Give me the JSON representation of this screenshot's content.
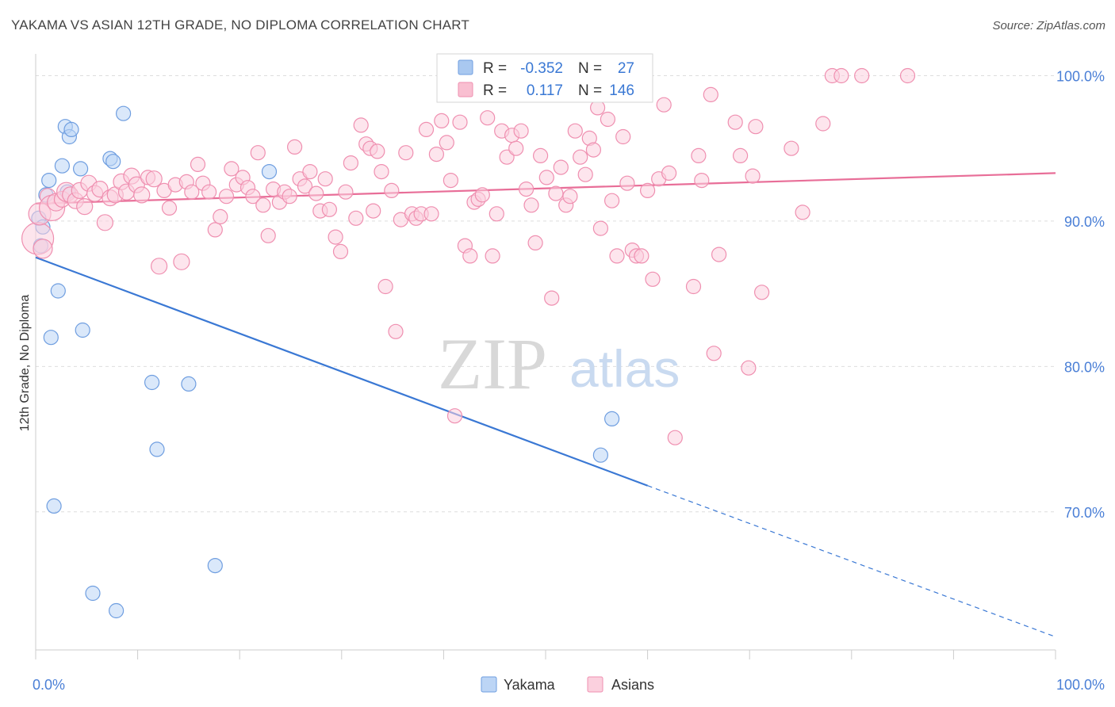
{
  "title": "YAKAMA VS ASIAN 12TH GRADE, NO DIPLOMA CORRELATION CHART",
  "source": "Source: ZipAtlas.com",
  "watermark": {
    "zip": "ZIP",
    "atlas": "atlas"
  },
  "stats": [
    {
      "r_label": "R =",
      "r_value": "-0.352",
      "n_label": "N =",
      "n_value": "27",
      "color": "#a9c8f0",
      "stroke": "#6f9ee0"
    },
    {
      "r_label": "R =",
      "r_value": "0.117",
      "n_label": "N =",
      "n_value": "146",
      "color": "#f9bfd1",
      "stroke": "#ef8fb0"
    }
  ],
  "legend": [
    {
      "label": "Yakama",
      "color": "#bcd5f5",
      "stroke": "#6f9ee0"
    },
    {
      "label": "Asians",
      "color": "#fbd0de",
      "stroke": "#ef8fb0"
    }
  ],
  "chart_data": {
    "type": "scatter",
    "xlabel": "",
    "ylabel": "12th Grade, No Diploma",
    "xlim": [
      0,
      100
    ],
    "ylim": [
      60.5,
      101.5
    ],
    "x_tick_labels": [
      {
        "v": 0,
        "label": "0.0%"
      },
      {
        "v": 100,
        "label": "100.0%"
      }
    ],
    "x_minor_ticks": [
      0,
      10,
      20,
      30,
      40,
      50,
      60,
      70,
      80,
      90,
      100
    ],
    "y_ticks": [
      {
        "v": 100,
        "label": "100.0%"
      },
      {
        "v": 90,
        "label": "90.0%"
      },
      {
        "v": 80,
        "label": "80.0%"
      },
      {
        "v": 70,
        "label": "70.0%"
      }
    ],
    "grid": true,
    "series": [
      {
        "name": "Yakama",
        "color": "#bcd5f5",
        "stroke": "#6f9ee0",
        "trend": {
          "x0": 0,
          "y0": 87.5,
          "x1": 60,
          "y1": 71.8,
          "dash_to_x": 100,
          "dash_to_y": 61.4,
          "color": "#3a78d4"
        },
        "points": [
          [
            0.3,
            90.2,
            9
          ],
          [
            0.5,
            88.3,
            9
          ],
          [
            0.7,
            89.6,
            9
          ],
          [
            1.0,
            91.8,
            9
          ],
          [
            1.3,
            92.8,
            9
          ],
          [
            1.5,
            82.0,
            9
          ],
          [
            1.8,
            70.4,
            9
          ],
          [
            2.2,
            85.2,
            9
          ],
          [
            2.6,
            93.8,
            9
          ],
          [
            2.9,
            96.5,
            9
          ],
          [
            3.1,
            92.0,
            9
          ],
          [
            3.3,
            95.8,
            9
          ],
          [
            3.5,
            96.3,
            9
          ],
          [
            4.4,
            93.6,
            9
          ],
          [
            4.6,
            82.5,
            9
          ],
          [
            5.6,
            64.4,
            9
          ],
          [
            7.3,
            94.3,
            9
          ],
          [
            7.6,
            94.1,
            9
          ],
          [
            7.9,
            63.2,
            9
          ],
          [
            8.6,
            97.4,
            9
          ],
          [
            11.4,
            78.9,
            9
          ],
          [
            11.9,
            74.3,
            9
          ],
          [
            15.0,
            78.8,
            9
          ],
          [
            17.6,
            66.3,
            9
          ],
          [
            22.9,
            93.4,
            9
          ],
          [
            55.4,
            73.9,
            9
          ],
          [
            56.5,
            76.4,
            9
          ]
        ]
      },
      {
        "name": "Asians",
        "color": "#fbd0de",
        "stroke": "#ef8fb0",
        "trend": {
          "x0": 0,
          "y0": 91.2,
          "x1": 100,
          "y1": 93.3,
          "color": "#e86e98"
        },
        "points": [
          [
            0.2,
            88.8,
            20
          ],
          [
            0.4,
            90.5,
            14
          ],
          [
            0.7,
            88.1,
            12
          ],
          [
            1.2,
            91.7,
            10
          ],
          [
            1.6,
            90.9,
            16
          ],
          [
            2.0,
            91.3,
            11
          ],
          [
            2.6,
            91.5,
            10
          ],
          [
            3.0,
            92.0,
            12
          ],
          [
            3.4,
            91.8,
            10
          ],
          [
            3.9,
            91.4,
            10
          ],
          [
            4.3,
            92.1,
            10
          ],
          [
            4.8,
            91.0,
            10
          ],
          [
            5.2,
            92.6,
            10
          ],
          [
            5.8,
            91.9,
            10
          ],
          [
            6.3,
            92.2,
            10
          ],
          [
            6.8,
            89.9,
            10
          ],
          [
            7.3,
            91.6,
            10
          ],
          [
            7.8,
            91.8,
            10
          ],
          [
            8.4,
            92.7,
            10
          ],
          [
            8.9,
            92.0,
            10
          ],
          [
            9.4,
            93.1,
            10
          ],
          [
            9.9,
            92.5,
            10
          ],
          [
            10.4,
            91.8,
            10
          ],
          [
            11.0,
            93.0,
            9
          ],
          [
            11.6,
            92.9,
            10
          ],
          [
            12.1,
            86.9,
            10
          ],
          [
            12.6,
            92.1,
            9
          ],
          [
            13.1,
            90.9,
            9
          ],
          [
            13.7,
            92.5,
            9
          ],
          [
            14.3,
            87.2,
            10
          ],
          [
            14.8,
            92.7,
            9
          ],
          [
            15.3,
            92.0,
            9
          ],
          [
            15.9,
            93.9,
            9
          ],
          [
            16.4,
            92.6,
            9
          ],
          [
            17.0,
            92.0,
            9
          ],
          [
            17.6,
            89.4,
            9
          ],
          [
            18.1,
            90.3,
            9
          ],
          [
            18.7,
            91.7,
            9
          ],
          [
            19.2,
            93.6,
            9
          ],
          [
            19.7,
            92.5,
            9
          ],
          [
            20.3,
            93.0,
            9
          ],
          [
            20.8,
            92.3,
            9
          ],
          [
            21.3,
            91.7,
            9
          ],
          [
            21.8,
            94.7,
            9
          ],
          [
            22.3,
            91.1,
            9
          ],
          [
            22.8,
            89.0,
            9
          ],
          [
            23.3,
            92.2,
            9
          ],
          [
            23.9,
            91.3,
            9
          ],
          [
            24.4,
            92.0,
            9
          ],
          [
            24.9,
            91.7,
            9
          ],
          [
            25.4,
            95.1,
            9
          ],
          [
            25.9,
            92.9,
            9
          ],
          [
            26.4,
            92.4,
            9
          ],
          [
            26.9,
            93.4,
            9
          ],
          [
            27.5,
            91.9,
            9
          ],
          [
            27.9,
            90.7,
            9
          ],
          [
            28.4,
            92.9,
            9
          ],
          [
            28.8,
            90.8,
            9
          ],
          [
            29.4,
            88.9,
            9
          ],
          [
            29.9,
            87.9,
            9
          ],
          [
            30.4,
            92.0,
            9
          ],
          [
            30.9,
            94.0,
            9
          ],
          [
            31.4,
            90.2,
            9
          ],
          [
            31.9,
            96.6,
            9
          ],
          [
            32.4,
            95.3,
            9
          ],
          [
            32.8,
            95.0,
            9
          ],
          [
            33.1,
            90.7,
            9
          ],
          [
            33.5,
            94.8,
            9
          ],
          [
            33.9,
            93.4,
            9
          ],
          [
            34.3,
            85.5,
            9
          ],
          [
            34.9,
            92.1,
            9
          ],
          [
            35.3,
            82.4,
            9
          ],
          [
            35.8,
            90.1,
            9
          ],
          [
            36.3,
            94.7,
            9
          ],
          [
            36.9,
            90.5,
            9
          ],
          [
            37.3,
            90.2,
            9
          ],
          [
            37.8,
            90.5,
            9
          ],
          [
            38.3,
            96.3,
            9
          ],
          [
            38.8,
            90.5,
            9
          ],
          [
            39.3,
            94.6,
            9
          ],
          [
            39.8,
            96.9,
            9
          ],
          [
            40.3,
            95.4,
            9
          ],
          [
            40.7,
            92.8,
            9
          ],
          [
            41.1,
            76.6,
            9
          ],
          [
            41.6,
            96.8,
            9
          ],
          [
            42.1,
            88.3,
            9
          ],
          [
            42.6,
            87.6,
            9
          ],
          [
            43.0,
            91.3,
            9
          ],
          [
            43.4,
            91.5,
            9
          ],
          [
            43.8,
            91.8,
            9
          ],
          [
            44.3,
            97.1,
            9
          ],
          [
            44.8,
            87.6,
            9
          ],
          [
            45.2,
            90.5,
            9
          ],
          [
            45.7,
            96.2,
            9
          ],
          [
            46.2,
            94.4,
            9
          ],
          [
            46.7,
            95.9,
            9
          ],
          [
            47.1,
            95.0,
            9
          ],
          [
            47.6,
            96.2,
            9
          ],
          [
            48.1,
            92.2,
            9
          ],
          [
            48.6,
            91.1,
            9
          ],
          [
            49.0,
            88.5,
            9
          ],
          [
            49.5,
            94.5,
            9
          ],
          [
            50.1,
            93.0,
            9
          ],
          [
            50.6,
            84.7,
            9
          ],
          [
            51.0,
            91.9,
            9
          ],
          [
            51.5,
            93.7,
            9
          ],
          [
            52.0,
            91.1,
            9
          ],
          [
            52.4,
            91.7,
            9
          ],
          [
            52.9,
            96.2,
            9
          ],
          [
            53.4,
            94.4,
            9
          ],
          [
            53.9,
            93.2,
            9
          ],
          [
            54.3,
            95.7,
            9
          ],
          [
            54.7,
            94.9,
            9
          ],
          [
            55.1,
            97.8,
            9
          ],
          [
            55.4,
            89.5,
            9
          ],
          [
            56.1,
            97.0,
            9
          ],
          [
            56.5,
            91.4,
            9
          ],
          [
            57.0,
            87.6,
            9
          ],
          [
            57.6,
            95.8,
            9
          ],
          [
            58.0,
            92.6,
            9
          ],
          [
            58.5,
            88.0,
            9
          ],
          [
            58.9,
            87.6,
            9
          ],
          [
            59.4,
            87.6,
            9
          ],
          [
            60.0,
            92.1,
            9
          ],
          [
            60.5,
            86.0,
            9
          ],
          [
            61.1,
            92.9,
            9
          ],
          [
            61.6,
            98.0,
            9
          ],
          [
            62.1,
            93.3,
            9
          ],
          [
            62.7,
            75.1,
            9
          ],
          [
            64.5,
            85.5,
            9
          ],
          [
            65.0,
            94.5,
            9
          ],
          [
            65.3,
            92.8,
            9
          ],
          [
            66.2,
            98.7,
            9
          ],
          [
            66.5,
            80.9,
            9
          ],
          [
            67.0,
            87.7,
            9
          ],
          [
            68.6,
            96.8,
            9
          ],
          [
            69.1,
            94.5,
            9
          ],
          [
            69.9,
            79.9,
            9
          ],
          [
            70.3,
            93.1,
            9
          ],
          [
            70.6,
            96.5,
            9
          ],
          [
            71.2,
            85.1,
            9
          ],
          [
            74.1,
            95.0,
            9
          ],
          [
            75.2,
            90.6,
            9
          ],
          [
            77.2,
            96.7,
            9
          ],
          [
            78.1,
            100.0,
            9
          ],
          [
            79.0,
            100.0,
            9
          ],
          [
            81.0,
            100.0,
            9
          ],
          [
            85.5,
            100.0,
            9
          ]
        ]
      }
    ]
  }
}
